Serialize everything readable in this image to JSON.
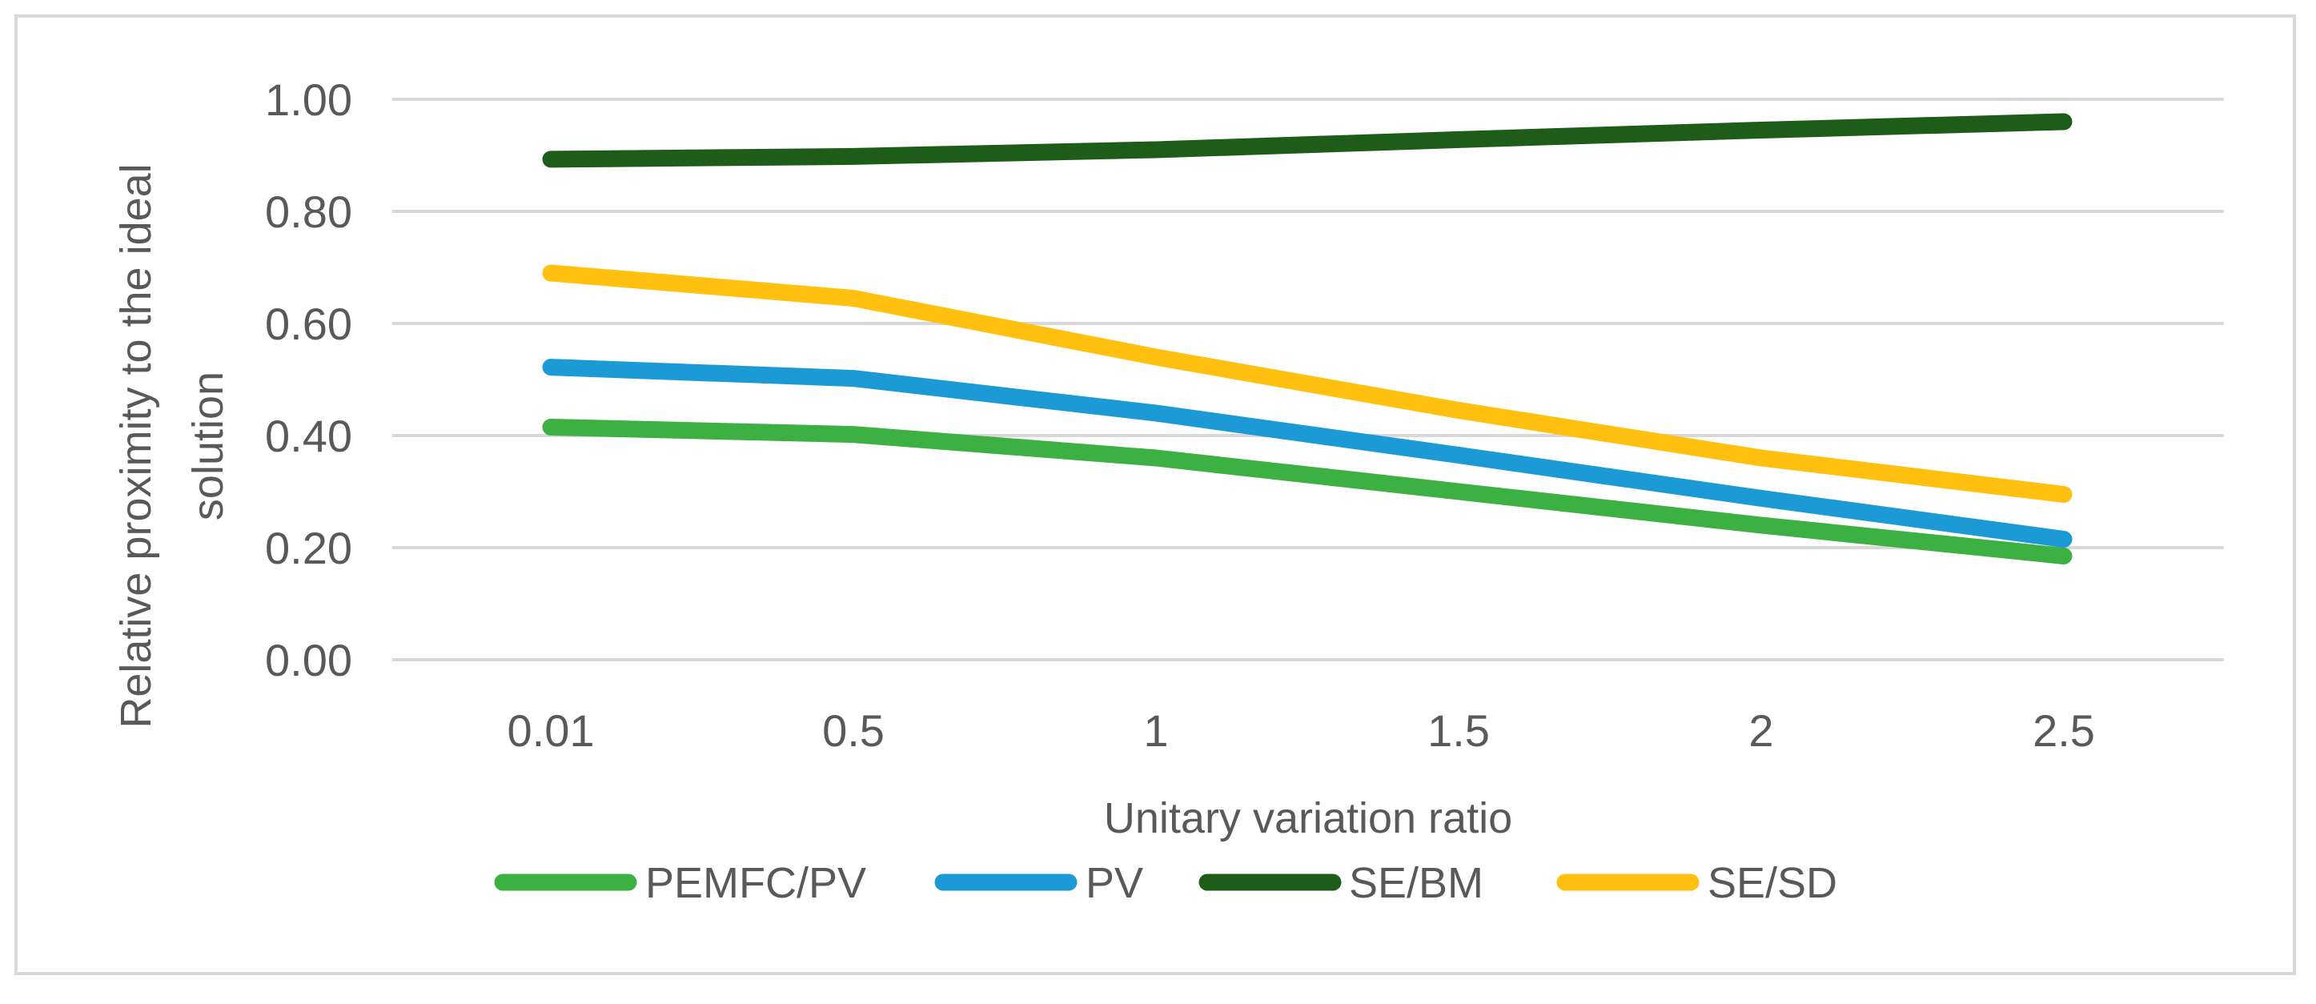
{
  "chart_data": {
    "type": "line",
    "title": "",
    "xlabel": "Unitary variation ratio",
    "ylabel": "Relative proximity to the ideal solution",
    "categories": [
      "0.01",
      "0.5",
      "1",
      "1.5",
      "2",
      "2.5"
    ],
    "ylim": [
      0,
      1.0
    ],
    "yticks": [
      "0.00",
      "0.20",
      "0.40",
      "0.60",
      "0.80",
      "1.00"
    ],
    "ytick_values": [
      0,
      0.2,
      0.4,
      0.6,
      0.8,
      1.0
    ],
    "grid": "horizontal",
    "legend_position": "bottom",
    "series": [
      {
        "name": "PEMFC/PV",
        "color": "#3cb043",
        "values": [
          0.415,
          0.402,
          0.36,
          0.3,
          0.24,
          0.185
        ]
      },
      {
        "name": "PV",
        "color": "#1b9ad6",
        "values": [
          0.522,
          0.502,
          0.44,
          0.365,
          0.288,
          0.215
        ]
      },
      {
        "name": "SE/BM",
        "color": "#1e5c1a",
        "values": [
          0.893,
          0.898,
          0.91,
          0.928,
          0.945,
          0.96
        ]
      },
      {
        "name": "SE/SD",
        "color": "#ffc010",
        "values": [
          0.69,
          0.645,
          0.54,
          0.445,
          0.36,
          0.295
        ]
      }
    ]
  }
}
